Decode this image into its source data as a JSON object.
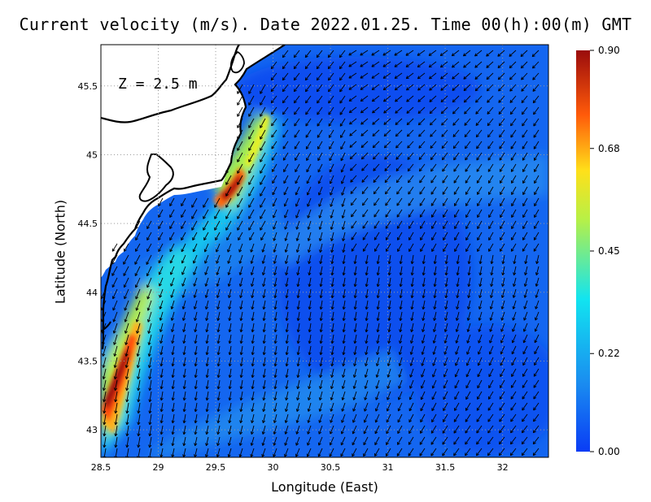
{
  "title": "Current velocity (m/s). Date 2022.01.25. Time 00(h):00(m) GMT",
  "depth_label": "Z = 2.5 m",
  "xlabel": "Longitude (East)",
  "ylabel": "Latitude (North)",
  "xticks": [
    "28.5",
    "29",
    "29.5",
    "30",
    "30.5",
    "31",
    "31.5",
    "32"
  ],
  "yticks": [
    "43",
    "43.5",
    "44",
    "44.5",
    "45",
    "45.5"
  ],
  "colorbar": {
    "ticks": [
      "0.00",
      "0.22",
      "0.45",
      "0.68",
      "0.90"
    ],
    "values": [
      0.0,
      0.22,
      0.45,
      0.68,
      0.9
    ],
    "colors": [
      "#0a3cf5",
      "#1a8cf0",
      "#12e4f0",
      "#b8f046",
      "#ffe01a",
      "#ff5a0a",
      "#9a0c0c"
    ]
  },
  "map": {
    "lon_range": [
      28.5,
      32.4
    ],
    "lat_range": [
      42.8,
      45.8
    ],
    "grid": true,
    "background_speed_m_s": 0.2,
    "land_color": "#ffffff",
    "coastline_color": "#000000"
  }
}
